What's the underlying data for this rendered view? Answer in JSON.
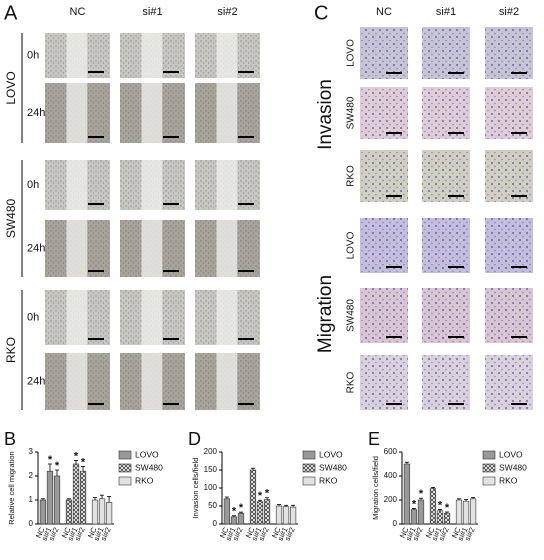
{
  "panels": {
    "A": {
      "label": "A",
      "columns": [
        "NC",
        "si#1",
        "si#2"
      ],
      "groups": [
        {
          "name": "LOVO",
          "rows": [
            "0h",
            "24h"
          ]
        },
        {
          "name": "SW480",
          "rows": [
            "0h",
            "24h"
          ]
        },
        {
          "name": "RKO",
          "rows": [
            "0h",
            "24h"
          ]
        }
      ]
    },
    "C": {
      "label": "C",
      "columns": [
        "NC",
        "si#1",
        "si#2"
      ],
      "sections": [
        {
          "name": "Invasion",
          "rows": [
            "LOVO",
            "SW480",
            "RKO"
          ]
        },
        {
          "name": "Migration",
          "rows": [
            "LOVO",
            "SW480",
            "RKO"
          ]
        }
      ]
    }
  },
  "chart_data": [
    {
      "panel_label": "B",
      "type": "bar",
      "ylabel": "Relative cell migration",
      "categories": [
        "NC",
        "si#1",
        "si#2",
        "NC",
        "si#1",
        "si#2",
        "NC",
        "si#1",
        "si#2"
      ],
      "ylim": [
        0,
        3
      ],
      "yticks": [
        0,
        1,
        2,
        3
      ],
      "series": [
        {
          "name": "LOVO",
          "color": "#999999",
          "values": [
            1,
            2.2,
            2.0,
            null,
            null,
            null,
            null,
            null,
            null
          ],
          "errors": [
            0.05,
            0.3,
            0.25,
            null,
            null,
            null,
            null,
            null,
            null
          ],
          "annotations": [
            null,
            "*",
            "*",
            null,
            null,
            null,
            null,
            null,
            null
          ]
        },
        {
          "name": "SW480",
          "color": "#444444",
          "pattern": "crosshatch",
          "values": [
            null,
            null,
            null,
            1,
            2.5,
            2.2,
            null,
            null,
            null
          ],
          "errors": [
            null,
            null,
            null,
            0.05,
            0.15,
            0.2,
            null,
            null,
            null
          ],
          "annotations": [
            null,
            null,
            null,
            null,
            "*",
            "*",
            null,
            null,
            null
          ]
        },
        {
          "name": "RKO",
          "color": "#e2e2e2",
          "values": [
            null,
            null,
            null,
            null,
            null,
            null,
            1,
            1.05,
            0.9
          ],
          "errors": [
            null,
            null,
            null,
            null,
            null,
            null,
            0.1,
            0.15,
            0.25
          ],
          "annotations": [
            null,
            null,
            null,
            null,
            null,
            null,
            null,
            null,
            null
          ]
        }
      ]
    },
    {
      "panel_label": "D",
      "type": "bar",
      "ylabel": "Invasion cells/field",
      "categories": [
        "NC",
        "si#1",
        "si#2",
        "NC",
        "si#1",
        "si#2",
        "NC",
        "si#1",
        "si#2"
      ],
      "ylim": [
        0,
        200
      ],
      "yticks": [
        0,
        50,
        100,
        150,
        200
      ],
      "series": [
        {
          "name": "LOVO",
          "color": "#999999",
          "values": [
            70,
            20,
            30,
            null,
            null,
            null,
            null,
            null,
            null
          ],
          "errors": [
            5,
            3,
            3,
            null,
            null,
            null,
            null,
            null,
            null
          ],
          "annotations": [
            null,
            "*",
            "*",
            null,
            null,
            null,
            null,
            null,
            null
          ]
        },
        {
          "name": "SW480",
          "color": "#444444",
          "pattern": "crosshatch",
          "values": [
            null,
            null,
            null,
            150,
            62,
            68,
            null,
            null,
            null
          ],
          "errors": [
            null,
            null,
            null,
            5,
            4,
            5,
            null,
            null,
            null
          ],
          "annotations": [
            null,
            null,
            null,
            null,
            "*",
            "*",
            null,
            null,
            null
          ]
        },
        {
          "name": "RKO",
          "color": "#e2e2e2",
          "values": [
            null,
            null,
            null,
            null,
            null,
            null,
            50,
            48,
            47
          ],
          "errors": [
            null,
            null,
            null,
            null,
            null,
            null,
            4,
            4,
            5
          ],
          "annotations": [
            null,
            null,
            null,
            null,
            null,
            null,
            null,
            null,
            null
          ]
        }
      ]
    },
    {
      "panel_label": "E",
      "type": "bar",
      "ylabel": "Migration cells/field",
      "categories": [
        "NC",
        "si#1",
        "si#2",
        "NC",
        "si#1",
        "si#2",
        "NC",
        "si#1",
        "si#2"
      ],
      "ylim": [
        0,
        600
      ],
      "yticks": [
        0,
        200,
        400,
        600
      ],
      "series": [
        {
          "name": "LOVO",
          "color": "#999999",
          "values": [
            500,
            120,
            200,
            null,
            null,
            null,
            null,
            null,
            null
          ],
          "errors": [
            15,
            10,
            15,
            null,
            null,
            null,
            null,
            null,
            null
          ],
          "annotations": [
            null,
            "*",
            "*",
            null,
            null,
            null,
            null,
            null,
            null
          ]
        },
        {
          "name": "SW480",
          "color": "#444444",
          "pattern": "crosshatch",
          "values": [
            null,
            null,
            null,
            295,
            110,
            90,
            null,
            null,
            null
          ],
          "errors": [
            null,
            null,
            null,
            10,
            10,
            10,
            null,
            null,
            null
          ],
          "annotations": [
            null,
            null,
            null,
            null,
            "*",
            "*",
            null,
            null,
            null
          ]
        },
        {
          "name": "RKO",
          "color": "#e2e2e2",
          "values": [
            null,
            null,
            null,
            null,
            null,
            null,
            200,
            190,
            210
          ],
          "errors": [
            null,
            null,
            null,
            null,
            null,
            null,
            10,
            15,
            10
          ],
          "annotations": [
            null,
            null,
            null,
            null,
            null,
            null,
            null,
            null,
            null
          ]
        }
      ]
    }
  ]
}
